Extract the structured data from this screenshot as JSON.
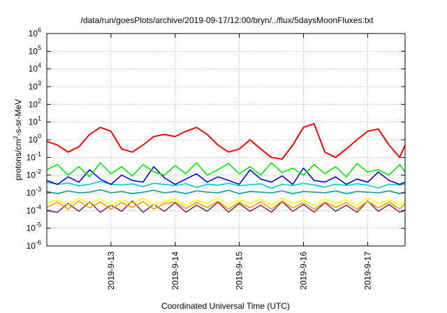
{
  "chart_data": {
    "type": "line",
    "title": "/data/run/goesPlots/archive/2019-09-17/12:00/bryn/../flux/5daysMoonFluxes.txt",
    "xlabel": "Coordinated Universal Time (UTC)",
    "ylabel": {
      "base": "protons/cm",
      "sup": "2",
      "rest": "-s-sr-MeV"
    },
    "yscale": "log",
    "ylim": [
      1e-06,
      1000000.0
    ],
    "y_ticks": [
      {
        "exp": "-6",
        "value": 1e-06
      },
      {
        "exp": "-5",
        "value": 1e-05
      },
      {
        "exp": "-4",
        "value": 0.0001
      },
      {
        "exp": "-3",
        "value": 0.001
      },
      {
        "exp": "-2",
        "value": 0.01
      },
      {
        "exp": "-1",
        "value": 0.1
      },
      {
        "exp": "0",
        "value": 1
      },
      {
        "exp": "1",
        "value": 10
      },
      {
        "exp": "2",
        "value": 100
      },
      {
        "exp": "3",
        "value": 1000
      },
      {
        "exp": "4",
        "value": 10000
      },
      {
        "exp": "5",
        "value": 100000
      },
      {
        "exp": "6",
        "value": 1000000
      }
    ],
    "y_tick_base": "10",
    "x_range": [
      "2019-09-12 00:00",
      "2019-09-17 14:00"
    ],
    "x_ticks": [
      "2019-9-13",
      "2019-9-14",
      "2019-9-15",
      "2019-9-16",
      "2019-9-17"
    ],
    "grid": true,
    "x": [
      "2019-09-12 00:00",
      "2019-09-12 04:00",
      "2019-09-12 08:00",
      "2019-09-12 12:00",
      "2019-09-12 16:00",
      "2019-09-12 20:00",
      "2019-09-13 00:00",
      "2019-09-13 04:00",
      "2019-09-13 08:00",
      "2019-09-13 12:00",
      "2019-09-13 16:00",
      "2019-09-13 20:00",
      "2019-09-14 00:00",
      "2019-09-14 04:00",
      "2019-09-14 08:00",
      "2019-09-14 12:00",
      "2019-09-14 16:00",
      "2019-09-14 20:00",
      "2019-09-15 00:00",
      "2019-09-15 04:00",
      "2019-09-15 08:00",
      "2019-09-15 12:00",
      "2019-09-15 16:00",
      "2019-09-15 20:00",
      "2019-09-16 00:00",
      "2019-09-16 04:00",
      "2019-09-16 08:00",
      "2019-09-16 12:00",
      "2019-09-16 16:00",
      "2019-09-16 20:00",
      "2019-09-17 00:00",
      "2019-09-17 04:00",
      "2019-09-17 08:00",
      "2019-09-17 12:00",
      "2019-09-17 14:00"
    ],
    "series": [
      {
        "color": "#ff0000",
        "values": [
          0.8,
          0.5,
          0.2,
          0.4,
          2,
          5,
          3,
          0.3,
          0.2,
          0.5,
          1.5,
          2,
          1.5,
          3,
          5,
          2,
          0.5,
          0.2,
          0.3,
          1,
          0.3,
          0.1,
          0.08,
          0.5,
          5,
          8,
          0.2,
          0.1,
          0.3,
          1,
          3,
          4,
          0.5,
          0.1,
          0.5
        ]
      },
      {
        "color": "#00ee00",
        "values": [
          0.02,
          0.04,
          0.01,
          0.03,
          0.008,
          0.05,
          0.012,
          0.03,
          0.009,
          0.04,
          0.015,
          0.01,
          0.035,
          0.012,
          0.05,
          0.01,
          0.02,
          0.045,
          0.012,
          0.03,
          0.01,
          0.05,
          0.014,
          0.025,
          0.01,
          0.04,
          0.012,
          0.03,
          0.008,
          0.045,
          0.015,
          0.02,
          0.01,
          0.04,
          0.015
        ]
      },
      {
        "color": "#0000ee",
        "values": [
          0.005,
          0.003,
          0.008,
          0.004,
          0.02,
          0.006,
          0.003,
          0.01,
          0.005,
          0.004,
          0.03,
          0.007,
          0.003,
          0.006,
          0.012,
          0.004,
          0.008,
          0.005,
          0.003,
          0.02,
          0.006,
          0.004,
          0.009,
          0.003,
          0.025,
          0.005,
          0.004,
          0.008,
          0.003,
          0.006,
          0.004,
          0.015,
          0.005,
          0.003,
          0.004
        ]
      },
      {
        "color": "#00c8c8",
        "values": [
          0.004,
          0.003,
          0.0035,
          0.0025,
          0.003,
          0.0045,
          0.003,
          0.0028,
          0.0032,
          0.0022,
          0.0035,
          0.003,
          0.0026,
          0.0033,
          0.002,
          0.0031,
          0.0027,
          0.0034,
          0.0025,
          0.0029,
          0.0032,
          0.0018,
          0.003,
          0.0026,
          0.0034,
          0.0028,
          0.0021,
          0.0031,
          0.0026,
          0.0033,
          0.0027,
          0.0019,
          0.003,
          0.0028,
          0.0032
        ]
      },
      {
        "color": "#00a090",
        "values": [
          0.0012,
          0.0009,
          0.0013,
          0.001,
          0.0011,
          0.0015,
          0.001,
          0.0012,
          0.0009,
          0.0011,
          0.0014,
          0.001,
          0.0012,
          0.0009,
          0.0013,
          0.0011,
          0.001,
          0.0014,
          0.0009,
          0.0012,
          0.0011,
          0.001,
          0.0013,
          0.0009,
          0.0012,
          0.0011,
          0.001,
          0.0013,
          0.0009,
          0.0012,
          0.0011,
          0.001,
          0.0013,
          0.0009,
          0.0011
        ]
      },
      {
        "color": "#ffff00",
        "values": [
          0.00025,
          0.0004,
          0.0002,
          0.0005,
          0.00025,
          0.00045,
          0.0002,
          0.0004,
          0.00025,
          0.0005,
          0.0002,
          0.00035,
          0.00045,
          0.0002,
          0.0004,
          0.00025,
          0.0005,
          0.0002,
          0.0004,
          0.00025,
          0.00045,
          0.0002,
          0.0005,
          0.00025,
          0.0004,
          0.0002,
          0.00045,
          0.00025,
          0.0004,
          0.0002,
          0.0005,
          0.00025,
          0.0004,
          0.0002,
          0.00035
        ]
      },
      {
        "color": "#ff9900",
        "values": [
          0.00015,
          0.0003,
          0.00012,
          0.00035,
          0.00014,
          0.0003,
          0.00012,
          0.00028,
          0.00015,
          0.00032,
          0.00012,
          0.00025,
          0.0003,
          0.00013,
          0.00028,
          0.00015,
          0.00034,
          0.00012,
          0.0003,
          0.00014,
          0.00032,
          0.00012,
          0.00035,
          0.00014,
          0.00028,
          0.00012,
          0.0003,
          0.00015,
          0.00028,
          0.00012,
          0.00034,
          0.00014,
          0.0003,
          0.00012,
          0.00025
        ]
      },
      {
        "color": "#7a3070",
        "values": [
          0.0001,
          8e-05,
          0.00025,
          9e-05,
          0.0003,
          8e-05,
          0.0002,
          9e-05,
          0.00035,
          8e-05,
          0.00022,
          9e-05,
          0.00028,
          8e-05,
          0.0002,
          9e-05,
          0.0003,
          8e-05,
          0.00025,
          9e-05,
          0.0002,
          8e-05,
          0.00032,
          9e-05,
          0.00022,
          8e-05,
          0.00028,
          9e-05,
          0.0002,
          8e-05,
          0.00035,
          9e-05,
          0.00022,
          8e-05,
          0.0001
        ]
      }
    ]
  }
}
